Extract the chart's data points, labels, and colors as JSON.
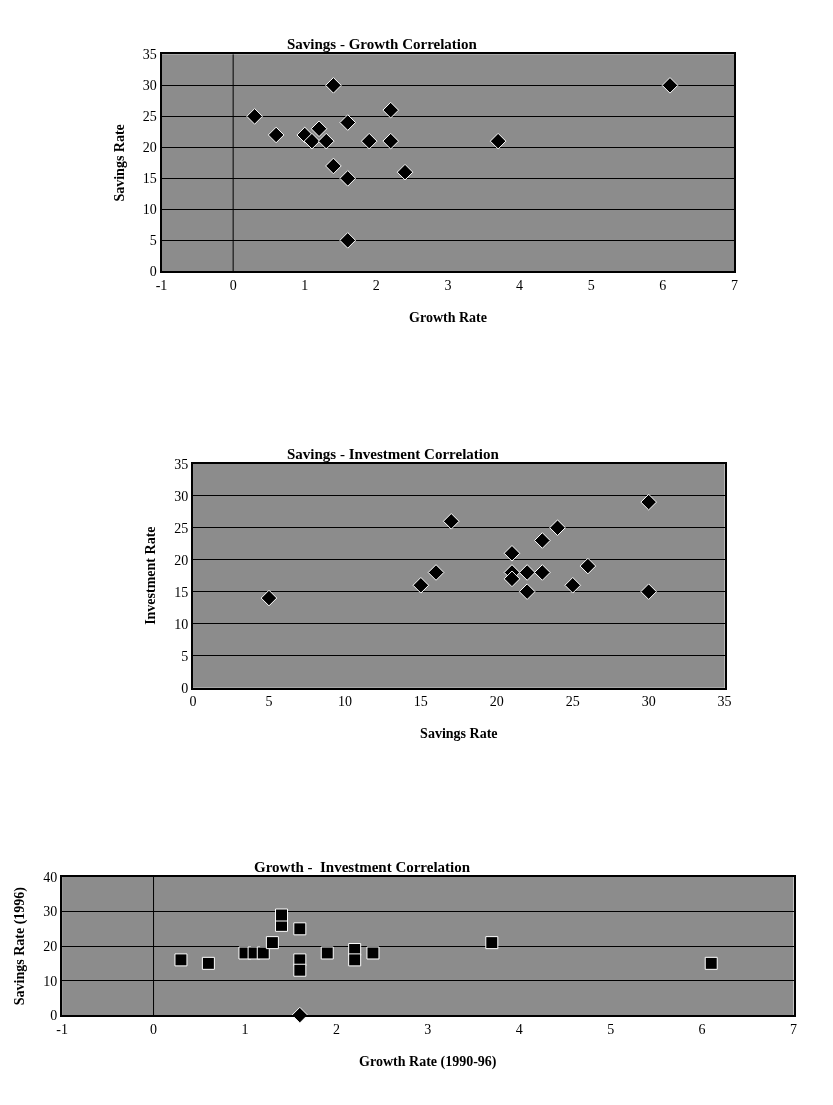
{
  "chart_data": [
    {
      "type": "scatter",
      "title": "Savings - Growth Correlation",
      "xlabel": "Growth Rate",
      "ylabel": "Savings Rate",
      "xlim": [
        -1,
        7
      ],
      "xticks": [
        -1,
        0,
        1,
        2,
        3,
        4,
        5,
        6,
        7
      ],
      "ylim": [
        0,
        35
      ],
      "yticks": [
        0,
        5,
        10,
        15,
        20,
        25,
        30,
        35
      ],
      "grid": "y",
      "marker": "diamond",
      "ref_lines": [
        {
          "axis": "x",
          "value": 0,
          "color": "#000000"
        }
      ],
      "series": [
        {
          "color": "#000000",
          "x": [
            0.3,
            0.6,
            1.0,
            1.1,
            1.2,
            1.3,
            1.4,
            1.4,
            1.6,
            1.6,
            1.6,
            1.9,
            2.2,
            2.2,
            2.4,
            3.7,
            6.1
          ],
          "values": [
            25,
            22,
            22,
            21,
            23,
            21,
            30,
            17,
            24,
            15,
            5,
            21,
            26,
            21,
            16,
            21,
            30
          ]
        }
      ]
    },
    {
      "type": "scatter",
      "title": "Savings - Investment Correlation",
      "xlabel": "Savings Rate",
      "ylabel": "Investment Rate",
      "xlim": [
        0,
        35
      ],
      "xticks": [
        0,
        5,
        10,
        15,
        20,
        25,
        30,
        35
      ],
      "ylim": [
        0,
        35
      ],
      "yticks": [
        0,
        5,
        10,
        15,
        20,
        25,
        30,
        35
      ],
      "grid": "y",
      "marker": "diamond",
      "series": [
        {
          "color": "#000000",
          "x": [
            5,
            15,
            16,
            17,
            21,
            21,
            21,
            22,
            22,
            23,
            23,
            24,
            25,
            26,
            30,
            30
          ],
          "values": [
            14,
            16,
            18,
            26,
            21,
            18,
            17,
            18,
            15,
            23,
            18,
            25,
            16,
            19,
            29,
            15
          ]
        }
      ]
    },
    {
      "type": "scatter",
      "title": "Growth -  Investment Correlation",
      "xlabel": "Growth Rate (1990-96)",
      "ylabel": "Savings Rate (1996)",
      "xlim": [
        -1,
        7
      ],
      "xticks": [
        -1,
        0,
        1,
        2,
        3,
        4,
        5,
        6,
        7
      ],
      "ylim": [
        0,
        40
      ],
      "yticks": [
        0,
        10,
        20,
        30,
        40
      ],
      "grid": "y",
      "marker": "square",
      "ref_lines": [
        {
          "axis": "x",
          "value": 0,
          "color": "#000000"
        }
      ],
      "series": [
        {
          "color": "#000000",
          "x": [
            0.3,
            0.6,
            1.0,
            1.1,
            1.2,
            1.3,
            1.4,
            1.4,
            1.6,
            1.6,
            1.6,
            1.9,
            2.2,
            2.2,
            2.4,
            3.7,
            6.1
          ],
          "values": [
            16,
            15,
            18,
            18,
            18,
            21,
            26,
            29,
            25,
            16,
            13,
            18,
            19,
            16,
            18,
            21,
            15
          ]
        },
        {
          "color": "#000000",
          "marker": "diamond",
          "x": [
            1.6
          ],
          "values": [
            0
          ]
        }
      ]
    }
  ]
}
